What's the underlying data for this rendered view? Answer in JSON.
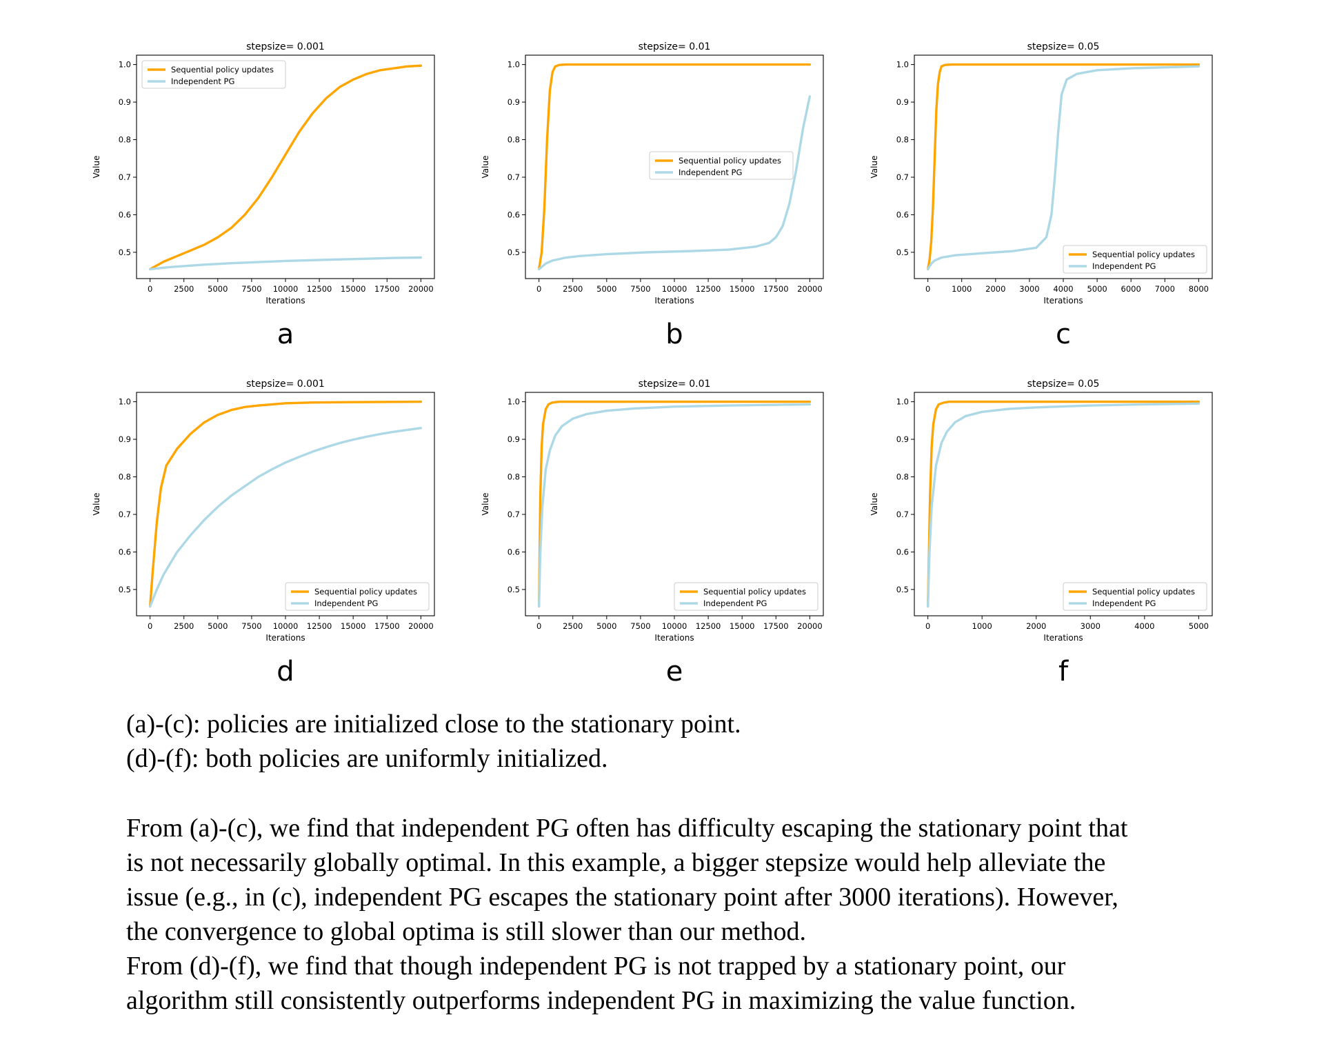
{
  "chart_data": [
    {
      "type": "line",
      "panel_label": "a",
      "title": "stepsize= 0.001",
      "xlabel": "Iterations",
      "ylabel": "Value",
      "xlim": [
        -1000,
        21000
      ],
      "ylim": [
        0.43,
        1.025
      ],
      "xticks": [
        0,
        2500,
        5000,
        7500,
        10000,
        12500,
        15000,
        17500,
        20000
      ],
      "yticks": [
        0.5,
        0.6,
        0.7,
        0.8,
        0.9,
        1.0
      ],
      "legend": "top-left",
      "series": [
        {
          "name": "Sequential policy updates",
          "color": "#ffa500",
          "x": [
            0,
            1000,
            2000,
            3000,
            4000,
            5000,
            6000,
            7000,
            8000,
            9000,
            10000,
            11000,
            12000,
            13000,
            14000,
            15000,
            16000,
            17000,
            18000,
            19000,
            20000
          ],
          "y": [
            0.455,
            0.475,
            0.49,
            0.505,
            0.52,
            0.54,
            0.565,
            0.6,
            0.645,
            0.7,
            0.76,
            0.82,
            0.87,
            0.91,
            0.94,
            0.96,
            0.975,
            0.985,
            0.99,
            0.995,
            0.997
          ]
        },
        {
          "name": "Independent PG",
          "color": "#add8e6",
          "x": [
            0,
            1000,
            2000,
            4000,
            6000,
            8000,
            10000,
            12000,
            14000,
            16000,
            18000,
            20000
          ],
          "y": [
            0.455,
            0.459,
            0.462,
            0.467,
            0.471,
            0.474,
            0.477,
            0.479,
            0.481,
            0.483,
            0.485,
            0.486
          ]
        }
      ]
    },
    {
      "type": "line",
      "panel_label": "b",
      "title": "stepsize= 0.01",
      "xlabel": "Iterations",
      "ylabel": "Value",
      "xlim": [
        -1000,
        21000
      ],
      "ylim": [
        0.43,
        1.025
      ],
      "xticks": [
        0,
        2500,
        5000,
        7500,
        10000,
        12500,
        15000,
        17500,
        20000
      ],
      "yticks": [
        0.5,
        0.6,
        0.7,
        0.8,
        0.9,
        1.0
      ],
      "legend": "center",
      "series": [
        {
          "name": "Sequential policy updates",
          "color": "#ffa500",
          "x": [
            0,
            200,
            400,
            600,
            800,
            1000,
            1200,
            1500,
            2000,
            3000,
            20000
          ],
          "y": [
            0.455,
            0.5,
            0.62,
            0.8,
            0.93,
            0.98,
            0.995,
            0.999,
            1.0,
            1.0,
            1.0
          ]
        },
        {
          "name": "Independent PG",
          "color": "#add8e6",
          "x": [
            0,
            500,
            1000,
            2000,
            3000,
            5000,
            8000,
            11000,
            14000,
            16000,
            17000,
            17500,
            18000,
            18500,
            19000,
            19500,
            20000
          ],
          "y": [
            0.455,
            0.47,
            0.478,
            0.486,
            0.49,
            0.495,
            0.5,
            0.503,
            0.507,
            0.515,
            0.525,
            0.54,
            0.57,
            0.63,
            0.72,
            0.83,
            0.915
          ]
        }
      ]
    },
    {
      "type": "line",
      "panel_label": "c",
      "title": "stepsize= 0.05",
      "xlabel": "Iterations",
      "ylabel": "Value",
      "xlim": [
        -400,
        8400
      ],
      "ylim": [
        0.43,
        1.025
      ],
      "xticks": [
        0,
        1000,
        2000,
        3000,
        4000,
        5000,
        6000,
        7000,
        8000
      ],
      "yticks": [
        0.5,
        0.6,
        0.7,
        0.8,
        0.9,
        1.0
      ],
      "legend": "lower-right",
      "series": [
        {
          "name": "Sequential policy updates",
          "color": "#ffa500",
          "x": [
            0,
            50,
            100,
            150,
            200,
            250,
            300,
            350,
            400,
            500,
            700,
            8000
          ],
          "y": [
            0.455,
            0.48,
            0.53,
            0.62,
            0.75,
            0.88,
            0.95,
            0.98,
            0.995,
            0.999,
            1.0,
            1.0
          ]
        },
        {
          "name": "Independent PG",
          "color": "#add8e6",
          "x": [
            0,
            100,
            200,
            400,
            800,
            1500,
            2500,
            3200,
            3500,
            3650,
            3750,
            3850,
            3950,
            4100,
            4400,
            5000,
            6000,
            8000
          ],
          "y": [
            0.455,
            0.47,
            0.478,
            0.486,
            0.492,
            0.497,
            0.503,
            0.512,
            0.54,
            0.6,
            0.7,
            0.82,
            0.92,
            0.96,
            0.975,
            0.985,
            0.99,
            0.995
          ]
        }
      ]
    },
    {
      "type": "line",
      "panel_label": "d",
      "title": "stepsize= 0.001",
      "xlabel": "Iterations",
      "ylabel": "Value",
      "xlim": [
        -1000,
        21000
      ],
      "ylim": [
        0.43,
        1.025
      ],
      "xticks": [
        0,
        2500,
        5000,
        7500,
        10000,
        12500,
        15000,
        17500,
        20000
      ],
      "yticks": [
        0.5,
        0.6,
        0.7,
        0.8,
        0.9,
        1.0
      ],
      "legend": "lower-right",
      "series": [
        {
          "name": "Sequential policy updates",
          "color": "#ffa500",
          "x": [
            0,
            200,
            500,
            800,
            1200,
            2000,
            3000,
            4000,
            5000,
            6000,
            7000,
            8000,
            10000,
            12000,
            15000,
            20000
          ],
          "y": [
            0.455,
            0.55,
            0.68,
            0.77,
            0.83,
            0.875,
            0.915,
            0.945,
            0.965,
            0.978,
            0.986,
            0.99,
            0.996,
            0.998,
            0.999,
            1.0
          ]
        },
        {
          "name": "Independent PG",
          "color": "#add8e6",
          "x": [
            0,
            500,
            1000,
            2000,
            3000,
            4000,
            5000,
            6000,
            7000,
            8000,
            9000,
            10000,
            11000,
            12000,
            13000,
            14000,
            15000,
            16000,
            17000,
            18000,
            19000,
            20000
          ],
          "y": [
            0.455,
            0.5,
            0.54,
            0.6,
            0.645,
            0.685,
            0.72,
            0.75,
            0.775,
            0.8,
            0.82,
            0.838,
            0.853,
            0.867,
            0.879,
            0.89,
            0.899,
            0.907,
            0.914,
            0.92,
            0.925,
            0.93
          ]
        }
      ]
    },
    {
      "type": "line",
      "panel_label": "e",
      "title": "stepsize= 0.01",
      "xlabel": "Iterations",
      "ylabel": "Value",
      "xlim": [
        -1000,
        21000
      ],
      "ylim": [
        0.43,
        1.025
      ],
      "xticks": [
        0,
        2500,
        5000,
        7500,
        10000,
        12500,
        15000,
        17500,
        20000
      ],
      "yticks": [
        0.5,
        0.6,
        0.7,
        0.8,
        0.9,
        1.0
      ],
      "legend": "lower-right",
      "series": [
        {
          "name": "Sequential policy updates",
          "color": "#ffa500",
          "x": [
            0,
            50,
            100,
            200,
            300,
            500,
            700,
            1000,
            1500,
            20000
          ],
          "y": [
            0.455,
            0.6,
            0.75,
            0.88,
            0.94,
            0.98,
            0.993,
            0.998,
            1.0,
            1.0
          ]
        },
        {
          "name": "Independent PG",
          "color": "#add8e6",
          "x": [
            0,
            100,
            250,
            500,
            800,
            1200,
            1700,
            2500,
            3500,
            5000,
            7000,
            10000,
            14000,
            20000
          ],
          "y": [
            0.455,
            0.6,
            0.72,
            0.82,
            0.87,
            0.91,
            0.935,
            0.955,
            0.967,
            0.976,
            0.982,
            0.987,
            0.99,
            0.993
          ]
        }
      ]
    },
    {
      "type": "line",
      "panel_label": "f",
      "title": "stepsize= 0.05",
      "xlabel": "Iterations",
      "ylabel": "Value",
      "xlim": [
        -250,
        5250
      ],
      "ylim": [
        0.43,
        1.025
      ],
      "xticks": [
        0,
        1000,
        2000,
        3000,
        4000,
        5000
      ],
      "yticks": [
        0.5,
        0.6,
        0.7,
        0.8,
        0.9,
        1.0
      ],
      "legend": "lower-right",
      "series": [
        {
          "name": "Sequential policy updates",
          "color": "#ffa500",
          "x": [
            0,
            20,
            40,
            70,
            100,
            150,
            200,
            300,
            400,
            5000
          ],
          "y": [
            0.455,
            0.6,
            0.75,
            0.88,
            0.94,
            0.98,
            0.993,
            0.998,
            1.0,
            1.0
          ]
        },
        {
          "name": "Independent PG",
          "color": "#add8e6",
          "x": [
            0,
            30,
            70,
            150,
            250,
            350,
            500,
            700,
            1000,
            1500,
            2000,
            3000,
            4000,
            5000
          ],
          "y": [
            0.455,
            0.6,
            0.72,
            0.83,
            0.89,
            0.92,
            0.945,
            0.962,
            0.973,
            0.981,
            0.985,
            0.99,
            0.993,
            0.995
          ]
        }
      ]
    }
  ],
  "captions": {
    "line1": "(a)-(c): policies are initialized close to the stationary point.",
    "line2": "(d)-(f): both policies are uniformly initialized.",
    "paragraph": [
      "From (a)-(c), we find that independent PG often has difficulty escaping the stationary point that",
      "is not necessarily globally optimal. In this example, a bigger stepsize would help alleviate the",
      "issue (e.g., in (c), independent PG escapes the stationary point after 3000 iterations). However,",
      "the convergence to global optima is still slower than our method.",
      "From (d)-(f), we find that though independent PG is not trapped by a stationary point, our",
      "algorithm still consistently outperforms independent PG in maximizing the value function."
    ]
  }
}
